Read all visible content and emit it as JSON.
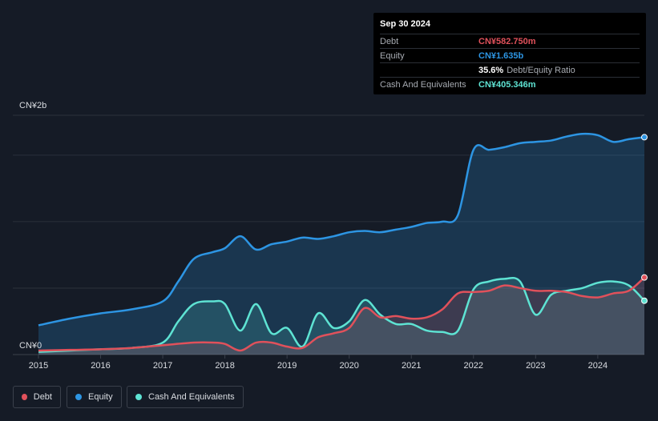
{
  "tooltip": {
    "date": "Sep 30 2024",
    "rows": [
      {
        "label": "Debt",
        "value": "CN¥582.750m",
        "color": "#e0515b"
      },
      {
        "label": "Equity",
        "value": "CN¥1.635b",
        "color": "#2d95e3"
      },
      {
        "label": "",
        "value": "35.6%",
        "extra": "Debt/Equity Ratio",
        "color": "#ffffff"
      },
      {
        "label": "Cash And Equivalents",
        "value": "CN¥405.346m",
        "color": "#5ee3d3"
      }
    ]
  },
  "legend": [
    {
      "label": "Debt",
      "color": "#e0515b"
    },
    {
      "label": "Equity",
      "color": "#2d95e3"
    },
    {
      "label": "Cash And Equivalents",
      "color": "#5ee3d3"
    }
  ],
  "chart_data": {
    "type": "area",
    "y_top_label": "CN¥2b",
    "y_bottom_label": "CN¥0",
    "x_ticks": [
      "2015",
      "2016",
      "2017",
      "2018",
      "2019",
      "2020",
      "2021",
      "2022",
      "2023",
      "2024"
    ],
    "xlim": [
      2015,
      2024.75
    ],
    "ylim": [
      0,
      1.8
    ],
    "y_unit": "CN¥ billions",
    "grid": true,
    "legend_position": "bottom-left",
    "series": [
      {
        "name": "Debt",
        "color": "#e0515b",
        "points": [
          [
            2015,
            0.03
          ],
          [
            2015.5,
            0.035
          ],
          [
            2016,
            0.04
          ],
          [
            2016.5,
            0.05
          ],
          [
            2017,
            0.07
          ],
          [
            2017.5,
            0.09
          ],
          [
            2017.8,
            0.09
          ],
          [
            2018,
            0.08
          ],
          [
            2018.25,
            0.03
          ],
          [
            2018.5,
            0.09
          ],
          [
            2018.75,
            0.09
          ],
          [
            2019,
            0.06
          ],
          [
            2019.25,
            0.05
          ],
          [
            2019.5,
            0.13
          ],
          [
            2019.75,
            0.16
          ],
          [
            2020,
            0.2
          ],
          [
            2020.25,
            0.35
          ],
          [
            2020.5,
            0.28
          ],
          [
            2020.75,
            0.29
          ],
          [
            2021,
            0.27
          ],
          [
            2021.25,
            0.28
          ],
          [
            2021.5,
            0.34
          ],
          [
            2021.75,
            0.46
          ],
          [
            2022,
            0.47
          ],
          [
            2022.25,
            0.48
          ],
          [
            2022.5,
            0.52
          ],
          [
            2022.75,
            0.5
          ],
          [
            2023,
            0.48
          ],
          [
            2023.25,
            0.48
          ],
          [
            2023.5,
            0.47
          ],
          [
            2023.75,
            0.44
          ],
          [
            2024,
            0.43
          ],
          [
            2024.25,
            0.46
          ],
          [
            2024.5,
            0.48
          ],
          [
            2024.75,
            0.58
          ]
        ]
      },
      {
        "name": "Equity",
        "color": "#2d95e3",
        "points": [
          [
            2015,
            0.22
          ],
          [
            2015.5,
            0.27
          ],
          [
            2016,
            0.31
          ],
          [
            2016.5,
            0.34
          ],
          [
            2017,
            0.4
          ],
          [
            2017.25,
            0.55
          ],
          [
            2017.5,
            0.72
          ],
          [
            2017.8,
            0.77
          ],
          [
            2018,
            0.8
          ],
          [
            2018.25,
            0.89
          ],
          [
            2018.5,
            0.79
          ],
          [
            2018.75,
            0.83
          ],
          [
            2019,
            0.85
          ],
          [
            2019.25,
            0.88
          ],
          [
            2019.5,
            0.87
          ],
          [
            2019.75,
            0.89
          ],
          [
            2020,
            0.92
          ],
          [
            2020.25,
            0.93
          ],
          [
            2020.5,
            0.92
          ],
          [
            2020.75,
            0.94
          ],
          [
            2021,
            0.96
          ],
          [
            2021.25,
            0.99
          ],
          [
            2021.5,
            1.0
          ],
          [
            2021.75,
            1.05
          ],
          [
            2022,
            1.54
          ],
          [
            2022.25,
            1.54
          ],
          [
            2022.5,
            1.56
          ],
          [
            2022.75,
            1.59
          ],
          [
            2023,
            1.6
          ],
          [
            2023.25,
            1.61
          ],
          [
            2023.5,
            1.64
          ],
          [
            2023.75,
            1.66
          ],
          [
            2024,
            1.65
          ],
          [
            2024.25,
            1.6
          ],
          [
            2024.5,
            1.62
          ],
          [
            2024.75,
            1.635
          ]
        ]
      },
      {
        "name": "Cash And Equivalents",
        "color": "#5ee3d3",
        "points": [
          [
            2015,
            0.02
          ],
          [
            2015.5,
            0.03
          ],
          [
            2016,
            0.04
          ],
          [
            2016.5,
            0.05
          ],
          [
            2017,
            0.09
          ],
          [
            2017.25,
            0.25
          ],
          [
            2017.5,
            0.38
          ],
          [
            2017.8,
            0.4
          ],
          [
            2018,
            0.38
          ],
          [
            2018.25,
            0.18
          ],
          [
            2018.5,
            0.38
          ],
          [
            2018.75,
            0.16
          ],
          [
            2019,
            0.2
          ],
          [
            2019.25,
            0.06
          ],
          [
            2019.5,
            0.31
          ],
          [
            2019.75,
            0.2
          ],
          [
            2020,
            0.25
          ],
          [
            2020.25,
            0.41
          ],
          [
            2020.5,
            0.3
          ],
          [
            2020.75,
            0.23
          ],
          [
            2021,
            0.23
          ],
          [
            2021.25,
            0.18
          ],
          [
            2021.5,
            0.17
          ],
          [
            2021.75,
            0.18
          ],
          [
            2022,
            0.49
          ],
          [
            2022.25,
            0.55
          ],
          [
            2022.5,
            0.57
          ],
          [
            2022.75,
            0.55
          ],
          [
            2023,
            0.3
          ],
          [
            2023.25,
            0.45
          ],
          [
            2023.5,
            0.48
          ],
          [
            2023.75,
            0.5
          ],
          [
            2024,
            0.54
          ],
          [
            2024.25,
            0.55
          ],
          [
            2024.5,
            0.52
          ],
          [
            2024.75,
            0.405
          ]
        ]
      }
    ]
  }
}
